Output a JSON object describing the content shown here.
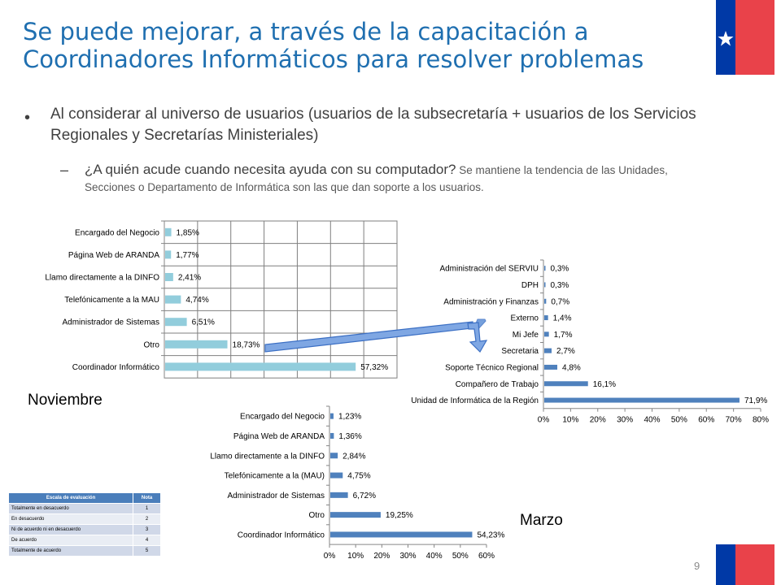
{
  "title": {
    "line1": "Se puede mejorar, a través de la capacitación a",
    "line2": "Coordinadores Informáticos para resolver problemas"
  },
  "bullet": {
    "dot": "•",
    "text": "Al considerar al universo de usuarios (usuarios de la subsecretaría + usuarios de los Servicios Regionales y Secretarías Ministeriales)"
  },
  "sub_bullet": {
    "dash": "–",
    "question": "¿A quién acude cuando necesita ayuda con su computador?",
    "text": " Se mantiene la tendencia de las Unidades, Secciones o Departamento de Informática son las que dan soporte a los usuarios."
  },
  "labels": {
    "noviembre": "Noviembre",
    "marzo": "Marzo",
    "page": "9"
  },
  "scale_table": {
    "headers": [
      "Escala de evaluación",
      "Nota"
    ],
    "rows": [
      [
        "Totalmente en desacuerdo",
        "1"
      ],
      [
        "En desacuerdo",
        "2"
      ],
      [
        "Ni de acuerdo ni en desacuerdo",
        "3"
      ],
      [
        "De acuerdo",
        "4"
      ],
      [
        "Totalmente de acuerdo",
        "5"
      ]
    ]
  },
  "colors": {
    "title": "#1f6fb0",
    "bar_light": "#92cddc",
    "bar_blue": "#4f81bd",
    "flag_blue": "#0039a6",
    "flag_red": "#e9424a"
  },
  "chart_data": [
    {
      "type": "bar",
      "orientation": "horizontal",
      "categories": [
        "Encargado del Negocio",
        "Página Web de ARANDA",
        "Llamo directamente a la DINFO",
        "Telefónicamente a la MAU",
        "Administrador de Sistemas",
        "Otro",
        "Coordinador Informático"
      ],
      "values": [
        1.85,
        1.77,
        2.41,
        4.74,
        6.51,
        18.73,
        57.32
      ],
      "data_labels": [
        "1,85%",
        "1,77%",
        "2,41%",
        "4,74%",
        "6,51%",
        "18,73%",
        "57,32%"
      ],
      "xlim": [
        0,
        70
      ],
      "grid": true
    },
    {
      "type": "bar",
      "orientation": "horizontal",
      "categories": [
        "Administración del SERVIU",
        "DPH",
        "Administración y Finanzas",
        "Externo",
        "Mi Jefe",
        "Secretaria",
        "Soporte Técnico Regional",
        "Compañero de Trabajo",
        "Unidad de Informática de la Región"
      ],
      "values": [
        0.3,
        0.3,
        0.7,
        1.4,
        1.7,
        2.7,
        4.8,
        16.1,
        71.9
      ],
      "data_labels": [
        "0,3%",
        "0,3%",
        "0,7%",
        "1,4%",
        "1,7%",
        "2,7%",
        "4,8%",
        "16,1%",
        "71,9%"
      ],
      "xlim": [
        0,
        80
      ],
      "xticks": [
        "0%",
        "10%",
        "20%",
        "30%",
        "40%",
        "50%",
        "60%",
        "70%",
        "80%"
      ],
      "grid": false
    },
    {
      "type": "bar",
      "orientation": "horizontal",
      "categories": [
        "Encargado del Negocio",
        "Página Web de ARANDA",
        "Llamo directamente a la DINFO",
        "Telefónicamente a la (MAU)",
        "Administrador de Sistemas",
        "Otro",
        "Coordinador Informático"
      ],
      "values": [
        1.23,
        1.36,
        2.84,
        4.75,
        6.72,
        19.25,
        54.23
      ],
      "data_labels": [
        "1,23%",
        "1,36%",
        "2,84%",
        "4,75%",
        "6,72%",
        "19,25%",
        "54,23%"
      ],
      "xlim": [
        0,
        60
      ],
      "xticks": [
        "0%",
        "10%",
        "20%",
        "30%",
        "40%",
        "50%",
        "60%"
      ],
      "grid": false
    }
  ]
}
